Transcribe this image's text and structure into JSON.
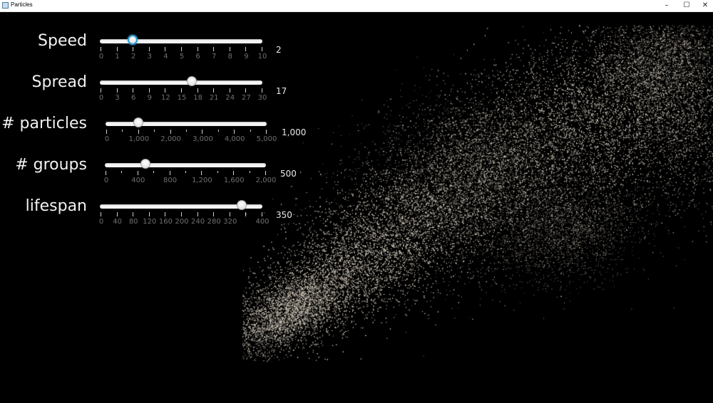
{
  "window": {
    "title": "Particles",
    "minimize_glyph": "–",
    "maximize_glyph": "☐",
    "close_glyph": "✕"
  },
  "controls": [
    {
      "name": "speed",
      "label": "Speed",
      "value_text": "2",
      "value": 2,
      "min": 0,
      "max": 10,
      "focused": true,
      "ticks": [
        "0",
        "1",
        "2",
        "3",
        "4",
        "5",
        "6",
        "7",
        "8",
        "9",
        "10"
      ],
      "minor_per_major": 0
    },
    {
      "name": "spread",
      "label": "Spread",
      "value_text": "17",
      "value": 17,
      "min": 0,
      "max": 30,
      "focused": false,
      "ticks": [
        "0",
        "3",
        "6",
        "9",
        "12",
        "15",
        "18",
        "21",
        "24",
        "27",
        "30"
      ],
      "minor_per_major": 0
    },
    {
      "name": "particles",
      "label": "# particles",
      "value_text": "1,000",
      "value": 1000,
      "min": 0,
      "max": 5000,
      "focused": false,
      "ticks": [
        "0",
        "1,000",
        "2,000",
        "3,000",
        "4,000",
        "5,000"
      ],
      "minor_per_major": 1
    },
    {
      "name": "groups",
      "label": "# groups",
      "value_text": "500",
      "value": 500,
      "min": 0,
      "max": 2000,
      "focused": false,
      "ticks": [
        "0",
        "400",
        "800",
        "1,200",
        "1,600",
        "2,000"
      ],
      "minor_per_major": 1
    },
    {
      "name": "lifespan",
      "label": "lifespan",
      "value_text": "350",
      "value": 350,
      "min": 0,
      "max": 400,
      "focused": false,
      "ticks": [
        "0",
        "40",
        "80",
        "120",
        "160",
        "200",
        "240",
        "280",
        "320",
        "",
        "400"
      ],
      "minor_per_major": 0
    }
  ],
  "colors": {
    "background": "#000000",
    "particle": "#d8cfc0",
    "focus_ring": "#2d9bd2"
  }
}
